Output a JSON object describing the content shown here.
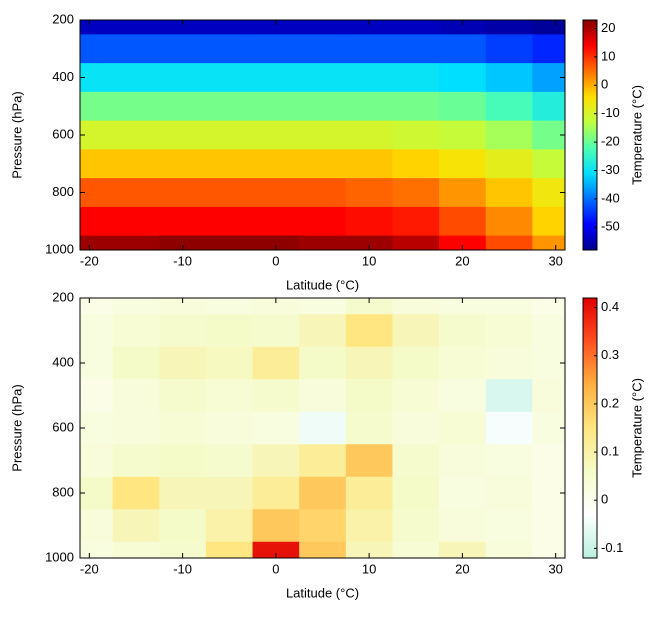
{
  "chart_data": [
    {
      "type": "heatmap",
      "x": [
        -20,
        -15,
        -10,
        -5,
        0,
        5,
        10,
        15,
        20,
        25,
        30
      ],
      "y": [
        200,
        300,
        400,
        500,
        600,
        700,
        800,
        900,
        1000
      ],
      "z": [
        [
          -54,
          -54,
          -54,
          -54,
          -54,
          -54,
          -54,
          -54,
          -55,
          -56,
          -57
        ],
        [
          -42,
          -42,
          -42,
          -42,
          -42,
          -42,
          -42,
          -42,
          -42,
          -44,
          -46
        ],
        [
          -30,
          -30,
          -30,
          -30,
          -30,
          -30,
          -30,
          -30,
          -31,
          -33,
          -36
        ],
        [
          -19,
          -19,
          -19,
          -19,
          -19,
          -19,
          -19,
          -19,
          -20,
          -23,
          -27
        ],
        [
          -10,
          -10,
          -10,
          -10,
          -10,
          -10,
          -10,
          -11,
          -12,
          -15,
          -19
        ],
        [
          -2,
          -2,
          -2,
          -2,
          -2,
          -2,
          -2,
          -3,
          -5,
          -8,
          -12
        ],
        [
          7,
          7,
          7,
          7,
          7,
          7,
          6,
          5,
          2,
          -2,
          -6
        ],
        [
          14,
          14,
          14,
          14,
          14,
          14,
          13,
          12,
          8,
          3,
          -3
        ],
        [
          21,
          21,
          22,
          22,
          22,
          21,
          21,
          19,
          14,
          8,
          2
        ]
      ],
      "xlim": [
        -21,
        31
      ],
      "ylim": [
        1000,
        200
      ],
      "xticks": [
        -20,
        -10,
        0,
        10,
        20,
        30
      ],
      "yticks": [
        200,
        400,
        600,
        800,
        1000
      ],
      "xlabel": "Latitude (°C)",
      "ylabel": "Pressure (hPa)",
      "colorbar": {
        "label": "Temperature (°C)",
        "lim": [
          -58,
          23
        ],
        "ticks": [
          20,
          10,
          0,
          -10,
          -20,
          -30,
          -40,
          -50
        ],
        "colormap": [
          "#00008f",
          "#0000ff",
          "#0070ff",
          "#00dfff",
          "#50ffaf",
          "#bfff40",
          "#ffdf00",
          "#ff7000",
          "#ff0000",
          "#800000"
        ]
      }
    },
    {
      "type": "heatmap",
      "x": [
        -20,
        -15,
        -10,
        -5,
        0,
        5,
        10,
        15,
        20,
        25,
        30
      ],
      "y": [
        200,
        300,
        400,
        500,
        600,
        700,
        800,
        900,
        1000
      ],
      "z": [
        [
          0.01,
          0.02,
          0.03,
          0.02,
          0.03,
          0.02,
          0.05,
          0.03,
          0.02,
          0.02,
          0.01
        ],
        [
          0.02,
          0.04,
          0.05,
          0.06,
          0.05,
          0.08,
          0.15,
          0.08,
          0.05,
          0.04,
          0.02
        ],
        [
          0.02,
          0.06,
          0.08,
          0.07,
          0.12,
          0.06,
          0.08,
          0.06,
          0.04,
          0.03,
          0.02
        ],
        [
          0.01,
          0.03,
          0.05,
          0.04,
          0.05,
          0.03,
          0.06,
          0.04,
          0.02,
          -0.08,
          0.03
        ],
        [
          0.02,
          0.03,
          0.04,
          0.03,
          0.02,
          -0.05,
          0.05,
          0.03,
          0.04,
          -0.04,
          0.02
        ],
        [
          0.03,
          0.05,
          0.06,
          0.05,
          0.08,
          0.12,
          0.2,
          0.05,
          0.03,
          0.02,
          0.01
        ],
        [
          0.06,
          0.15,
          0.08,
          0.08,
          0.12,
          0.2,
          0.12,
          0.06,
          0.02,
          0.03,
          0.01
        ],
        [
          0.03,
          0.08,
          0.06,
          0.1,
          0.2,
          0.18,
          0.1,
          0.05,
          0.03,
          0.02,
          0.01
        ],
        [
          0.02,
          0.04,
          0.05,
          0.15,
          0.4,
          0.2,
          0.08,
          0.04,
          0.08,
          0.03,
          0.01
        ]
      ],
      "xlim": [
        -21,
        31
      ],
      "ylim": [
        1000,
        200
      ],
      "xticks": [
        -20,
        -10,
        0,
        10,
        20,
        30
      ],
      "yticks": [
        200,
        400,
        600,
        800,
        1000
      ],
      "xlabel": "Latitude (°C)",
      "ylabel": "Pressure (hPa)",
      "colorbar": {
        "label": "Temperature (°C)",
        "lim": [
          -0.12,
          0.42
        ],
        "ticks": [
          0.4,
          0.3,
          0.2,
          0.1,
          0,
          -0.1
        ],
        "colormap": [
          "#b8f0e0",
          "#ffffff",
          "#f5fbc8",
          "#ffe680",
          "#ffb040",
          "#ff5020",
          "#e00000"
        ]
      }
    }
  ]
}
